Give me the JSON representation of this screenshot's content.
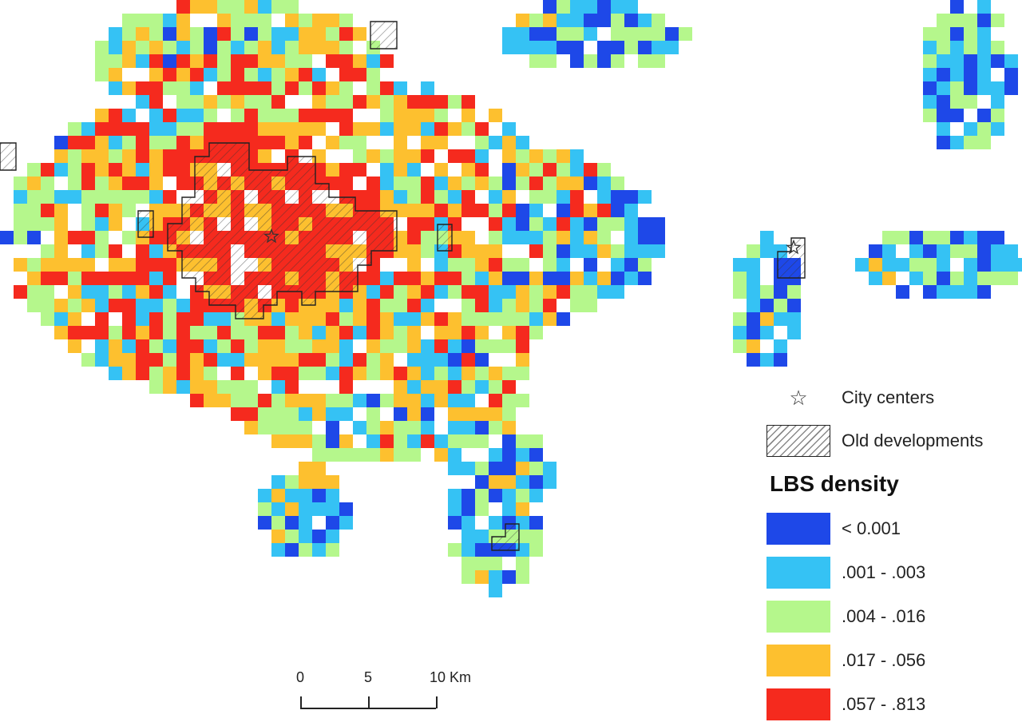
{
  "map": {
    "colors": {
      "class_1": "#1e48e8",
      "class_2": "#35c2f4",
      "class_3": "#b5f78c",
      "class_4": "#fdc02f",
      "class_5": "#f52a1e",
      "old_dev_outline": "#222222",
      "star": "#333333"
    },
    "symbols": {
      "city_center": "star-icon",
      "old_development": "hatch-pattern"
    }
  },
  "legend": {
    "city_centers_label": "City centers",
    "old_developments_label": "Old developments",
    "title": "LBS density",
    "classes": [
      {
        "label": "< 0.001",
        "color": "#1e48e8"
      },
      {
        "label": ".001 - .003",
        "color": "#35c2f4"
      },
      {
        "label": ".004 - .016",
        "color": "#b5f78c"
      },
      {
        "label": ".017 - .056",
        "color": "#fdc02f"
      },
      {
        "label": ".057 - .813",
        "color": "#f52a1e"
      }
    ]
  },
  "scale_bar": {
    "labels": [
      "0",
      "5",
      "10 Km"
    ]
  }
}
